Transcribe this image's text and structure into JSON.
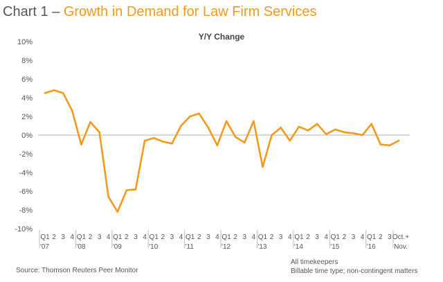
{
  "header": {
    "title_prefix": "Chart 1 – ",
    "title_main": "Growth in Demand for Law Firm Services"
  },
  "chart_data": {
    "type": "line",
    "title": "Chart 1 – Growth in Demand for Law Firm Services",
    "subtitle": "Y/Y Change",
    "xlabel": "",
    "ylabel": "",
    "ylim": [
      -10,
      10
    ],
    "yticks": [
      "10%",
      "8%",
      "6%",
      "4%",
      "2%",
      "0%",
      "-2%",
      "-4%",
      "-6%",
      "-8%",
      "-10%"
    ],
    "yticks_values": [
      10,
      8,
      6,
      4,
      2,
      0,
      -2,
      -4,
      -6,
      -8,
      -10
    ],
    "color": "#f39a1e",
    "zero_line": true,
    "categories": [
      "Q1 '07",
      "Q2 '07",
      "Q3 '07",
      "Q4 '07",
      "Q1 '08",
      "Q2 '08",
      "Q3 '08",
      "Q4 '08",
      "Q1 '09",
      "Q2 '09",
      "Q3 '09",
      "Q4 '09",
      "Q1 '10",
      "Q2 '10",
      "Q3 '10",
      "Q4 '10",
      "Q1 '11",
      "Q2 '11",
      "Q3 '11",
      "Q4 '11",
      "Q1 '12",
      "Q2 '12",
      "Q3 '12",
      "Q4 '12",
      "Q1 '13",
      "Q2 '13",
      "Q3 '13",
      "Q4 '13",
      "Q1 '14",
      "Q2 '14",
      "Q3 '14",
      "Q4 '14",
      "Q1 '15",
      "Q2 '15",
      "Q3 '15",
      "Q4 '15",
      "Q1 '16",
      "Q2 '16",
      "Q3 '16",
      "Oct.+Nov."
    ],
    "series": [
      {
        "name": "Y/Y Change",
        "values": [
          4.5,
          4.8,
          4.5,
          2.6,
          -1.0,
          1.4,
          0.3,
          -6.6,
          -8.2,
          -5.9,
          -5.8,
          -0.6,
          -0.3,
          -0.7,
          -0.9,
          1.0,
          2.0,
          2.3,
          0.8,
          -1.1,
          1.5,
          -0.2,
          -0.8,
          1.5,
          -3.4,
          0.0,
          0.8,
          -0.6,
          0.9,
          0.5,
          1.2,
          0.1,
          0.6,
          0.3,
          0.2,
          0.0,
          1.2,
          -1.0,
          -1.1,
          -0.6
        ]
      }
    ],
    "year_groups": [
      {
        "quarters": [
          "Q1",
          "2",
          "3",
          "4"
        ],
        "year": "'07"
      },
      {
        "quarters": [
          "Q1",
          "2",
          "3",
          "4"
        ],
        "year": "'08"
      },
      {
        "quarters": [
          "Q1",
          "2",
          "3",
          "4"
        ],
        "year": "'09"
      },
      {
        "quarters": [
          "Q1",
          "2",
          "3",
          "4"
        ],
        "year": "'10"
      },
      {
        "quarters": [
          "Q1",
          "2",
          "3",
          "4"
        ],
        "year": "'11"
      },
      {
        "quarters": [
          "Q1",
          "2",
          "3",
          "4"
        ],
        "year": "'12"
      },
      {
        "quarters": [
          "Q1",
          "2",
          "3",
          "4"
        ],
        "year": "'13"
      },
      {
        "quarters": [
          "Q1",
          "2",
          "3",
          "4"
        ],
        "year": "'14"
      },
      {
        "quarters": [
          "Q1",
          "2",
          "3",
          "4"
        ],
        "year": "'15"
      },
      {
        "quarters": [
          "Q1",
          "2",
          "3"
        ],
        "year": "'16"
      }
    ],
    "last_label_top": "Oct.+",
    "last_label_bottom": "Nov."
  },
  "footer": {
    "source": "Source: Thomson Reuters Peer Monitor",
    "note_1": "All timekeepers",
    "note_2": "Billable time type; non-contingent matters"
  }
}
